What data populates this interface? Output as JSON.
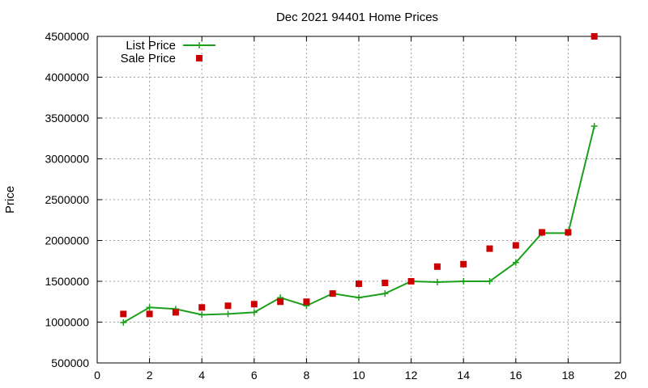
{
  "chart_data": {
    "type": "line",
    "title": "Dec 2021 94401 Home Prices",
    "xlabel": "",
    "ylabel": "Price",
    "xlim": [
      0,
      20
    ],
    "ylim": [
      500000,
      4500000
    ],
    "x_ticks": [
      0,
      2,
      4,
      6,
      8,
      10,
      12,
      14,
      16,
      18,
      20
    ],
    "y_ticks": [
      500000,
      1000000,
      1500000,
      2000000,
      2500000,
      3000000,
      3500000,
      4000000,
      4500000
    ],
    "grid": true,
    "legend_position": "top-left",
    "series": [
      {
        "name": "List Price",
        "style": "line-with-plus-markers",
        "color": "#1aa01a",
        "x": [
          1,
          2,
          3,
          4,
          5,
          6,
          7,
          8,
          9,
          10,
          11,
          12,
          13,
          14,
          15,
          16,
          17,
          18,
          19
        ],
        "values": [
          995000,
          1180000,
          1160000,
          1090000,
          1100000,
          1120000,
          1300000,
          1200000,
          1350000,
          1300000,
          1350000,
          1500000,
          1490000,
          1500000,
          1500000,
          1730000,
          2090000,
          2090000,
          3400000
        ]
      },
      {
        "name": "Sale Price",
        "style": "square-markers",
        "color": "#cc0000",
        "x": [
          1,
          2,
          3,
          4,
          5,
          6,
          7,
          8,
          9,
          10,
          11,
          12,
          13,
          14,
          15,
          16,
          17,
          18,
          19
        ],
        "values": [
          1100000,
          1100000,
          1120000,
          1180000,
          1200000,
          1220000,
          1250000,
          1250000,
          1350000,
          1470000,
          1480000,
          1500000,
          1680000,
          1710000,
          1900000,
          1940000,
          2100000,
          2100000,
          4500000
        ]
      }
    ]
  }
}
